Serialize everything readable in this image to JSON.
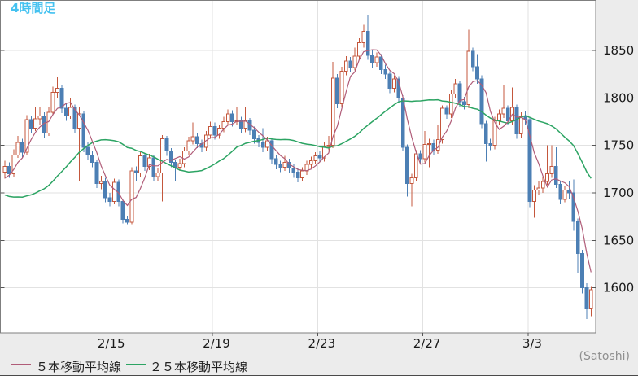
{
  "title": {
    "text": "4時間足"
  },
  "unit_label": "(Satoshi)",
  "legend": [
    {
      "label": "５本移動平均線",
      "period": 5,
      "color": "#b05c78"
    },
    {
      "label": "２５本移動平均線",
      "period": 25,
      "color": "#2ca463"
    }
  ],
  "y_axis": {
    "ticks": [
      "1850",
      "1800",
      "1750",
      "1700",
      "1650",
      "1600"
    ]
  },
  "x_axis": {
    "ticks": [
      "2/15",
      "2/19",
      "2/23",
      "2/27",
      "3/3"
    ]
  },
  "colors": {
    "page_bg": "#ececec",
    "plot_bg": "#ffffff",
    "plot_border": "#7f7f7f",
    "grid": "#e2e2e2",
    "tick": "#555555",
    "axis_text": "#1a1a1a",
    "muted_text": "#8f8f8f",
    "bull": "#c4573c",
    "bull_fill": "#ffffff",
    "bear": "#4c7fb4",
    "ma5": "#b05c78",
    "ma25": "#2ca463",
    "title": "#45c2f0",
    "frame_line": "#4a4a4a"
  },
  "chart_data": {
    "type": "candlestick",
    "timeframe_label": "4時間足",
    "unit": "Satoshi",
    "ylim": [
      1560,
      1895
    ],
    "y_tick_values": [
      1850,
      1800,
      1750,
      1700,
      1650,
      1600
    ],
    "x_tick_labels": [
      "2/15",
      "2/19",
      "2/23",
      "2/27",
      "3/3"
    ],
    "grid": true,
    "legend_position": "bottom-left",
    "overlays": [
      {
        "name": "５本移動平均線",
        "type": "sma",
        "period": 5
      },
      {
        "name": "２５本移動平均線",
        "type": "sma",
        "period": 25
      }
    ],
    "pre_history_closes_ma5": [
      1705,
      1710,
      1715,
      1720
    ],
    "pre_history_closes_ma25": [
      1760,
      1755,
      1750,
      1748,
      1745,
      1740,
      1730,
      1720,
      1710,
      1700,
      1690,
      1680,
      1670,
      1660,
      1655,
      1650,
      1648,
      1650,
      1655,
      1660,
      1670,
      1680,
      1690,
      1700
    ],
    "candles_ohlc": [
      [
        1722,
        1734,
        1715,
        1728
      ],
      [
        1728,
        1732,
        1716,
        1720
      ],
      [
        1720,
        1746,
        1717,
        1740
      ],
      [
        1740,
        1760,
        1737,
        1753
      ],
      [
        1753,
        1757,
        1737,
        1743
      ],
      [
        1743,
        1782,
        1740,
        1777
      ],
      [
        1777,
        1781,
        1763,
        1768
      ],
      [
        1768,
        1791,
        1765,
        1778
      ],
      [
        1778,
        1791,
        1772,
        1781
      ],
      [
        1781,
        1785,
        1758,
        1763
      ],
      [
        1763,
        1790,
        1760,
        1785
      ],
      [
        1785,
        1812,
        1782,
        1806
      ],
      [
        1806,
        1822,
        1800,
        1810
      ],
      [
        1810,
        1814,
        1784,
        1789
      ],
      [
        1789,
        1794,
        1776,
        1781
      ],
      [
        1781,
        1800,
        1778,
        1790
      ],
      [
        1790,
        1793,
        1763,
        1768
      ],
      [
        1768,
        1790,
        1713,
        1783
      ],
      [
        1783,
        1786,
        1743,
        1748
      ],
      [
        1748,
        1753,
        1735,
        1740
      ],
      [
        1740,
        1744,
        1727,
        1732
      ],
      [
        1732,
        1735,
        1705,
        1710
      ],
      [
        1710,
        1718,
        1704,
        1712
      ],
      [
        1712,
        1716,
        1690,
        1695
      ],
      [
        1695,
        1700,
        1686,
        1691
      ],
      [
        1691,
        1715,
        1688,
        1711
      ],
      [
        1711,
        1714,
        1686,
        1691
      ],
      [
        1691,
        1694,
        1668,
        1672
      ],
      [
        1672,
        1676,
        1667,
        1669
      ],
      [
        1669,
        1727,
        1667,
        1723
      ],
      [
        1723,
        1728,
        1713,
        1721
      ],
      [
        1721,
        1743,
        1717,
        1739
      ],
      [
        1739,
        1742,
        1723,
        1728
      ],
      [
        1728,
        1741,
        1724,
        1737
      ],
      [
        1737,
        1740,
        1712,
        1717
      ],
      [
        1717,
        1726,
        1713,
        1721
      ],
      [
        1721,
        1761,
        1691,
        1757
      ],
      [
        1757,
        1760,
        1739,
        1744
      ],
      [
        1744,
        1747,
        1727,
        1732
      ],
      [
        1732,
        1735,
        1713,
        1727
      ],
      [
        1727,
        1736,
        1723,
        1731
      ],
      [
        1731,
        1748,
        1727,
        1744
      ],
      [
        1744,
        1759,
        1740,
        1755
      ],
      [
        1755,
        1774,
        1751,
        1759
      ],
      [
        1759,
        1763,
        1747,
        1752
      ],
      [
        1752,
        1756,
        1743,
        1748
      ],
      [
        1748,
        1765,
        1744,
        1761
      ],
      [
        1761,
        1775,
        1757,
        1770
      ],
      [
        1770,
        1774,
        1756,
        1761
      ],
      [
        1761,
        1772,
        1757,
        1768
      ],
      [
        1768,
        1780,
        1764,
        1775
      ],
      [
        1775,
        1788,
        1771,
        1783
      ],
      [
        1783,
        1787,
        1770,
        1775
      ],
      [
        1775,
        1791,
        1771,
        1776
      ],
      [
        1776,
        1780,
        1763,
        1768
      ],
      [
        1768,
        1791,
        1764,
        1776
      ],
      [
        1776,
        1779,
        1761,
        1766
      ],
      [
        1766,
        1770,
        1752,
        1757
      ],
      [
        1757,
        1761,
        1748,
        1753
      ],
      [
        1753,
        1768,
        1743,
        1748
      ],
      [
        1748,
        1759,
        1744,
        1755
      ],
      [
        1755,
        1758,
        1731,
        1736
      ],
      [
        1736,
        1740,
        1725,
        1730
      ],
      [
        1730,
        1734,
        1722,
        1727
      ],
      [
        1727,
        1739,
        1723,
        1732
      ],
      [
        1732,
        1736,
        1721,
        1726
      ],
      [
        1726,
        1730,
        1716,
        1722
      ],
      [
        1722,
        1726,
        1711,
        1716
      ],
      [
        1716,
        1727,
        1712,
        1723
      ],
      [
        1723,
        1734,
        1719,
        1730
      ],
      [
        1730,
        1738,
        1726,
        1734
      ],
      [
        1734,
        1743,
        1730,
        1739
      ],
      [
        1739,
        1744,
        1732,
        1737
      ],
      [
        1737,
        1753,
        1733,
        1749
      ],
      [
        1749,
        1760,
        1745,
        1750
      ],
      [
        1750,
        1838,
        1747,
        1821
      ],
      [
        1821,
        1825,
        1789,
        1794
      ],
      [
        1794,
        1833,
        1791,
        1828
      ],
      [
        1828,
        1844,
        1824,
        1839
      ],
      [
        1839,
        1843,
        1827,
        1832
      ],
      [
        1832,
        1853,
        1829,
        1844
      ],
      [
        1844,
        1863,
        1840,
        1858
      ],
      [
        1858,
        1877,
        1853,
        1870
      ],
      [
        1870,
        1887,
        1840,
        1845
      ],
      [
        1845,
        1850,
        1832,
        1837
      ],
      [
        1837,
        1848,
        1833,
        1843
      ],
      [
        1843,
        1846,
        1825,
        1830
      ],
      [
        1830,
        1835,
        1820,
        1825
      ],
      [
        1825,
        1828,
        1805,
        1810
      ],
      [
        1810,
        1824,
        1806,
        1820
      ],
      [
        1820,
        1823,
        1795,
        1800
      ],
      [
        1800,
        1803,
        1744,
        1748
      ],
      [
        1748,
        1751,
        1696,
        1710
      ],
      [
        1710,
        1720,
        1686,
        1716
      ],
      [
        1716,
        1745,
        1712,
        1741
      ],
      [
        1741,
        1745,
        1731,
        1736
      ],
      [
        1736,
        1765,
        1732,
        1751
      ],
      [
        1751,
        1757,
        1727,
        1752
      ],
      [
        1752,
        1756,
        1740,
        1745
      ],
      [
        1745,
        1771,
        1741,
        1756
      ],
      [
        1756,
        1792,
        1752,
        1789
      ],
      [
        1789,
        1792,
        1778,
        1783
      ],
      [
        1783,
        1809,
        1779,
        1804
      ],
      [
        1804,
        1820,
        1800,
        1815
      ],
      [
        1815,
        1818,
        1791,
        1796
      ],
      [
        1796,
        1801,
        1788,
        1793
      ],
      [
        1793,
        1872,
        1789,
        1849
      ],
      [
        1849,
        1853,
        1828,
        1833
      ],
      [
        1833,
        1846,
        1815,
        1820
      ],
      [
        1820,
        1824,
        1768,
        1773
      ],
      [
        1773,
        1776,
        1733,
        1752
      ],
      [
        1752,
        1757,
        1745,
        1750
      ],
      [
        1750,
        1780,
        1746,
        1776
      ],
      [
        1776,
        1788,
        1771,
        1783
      ],
      [
        1783,
        1813,
        1779,
        1789
      ],
      [
        1789,
        1792,
        1771,
        1776
      ],
      [
        1776,
        1811,
        1772,
        1790
      ],
      [
        1790,
        1793,
        1757,
        1762
      ],
      [
        1762,
        1785,
        1758,
        1780
      ],
      [
        1780,
        1786,
        1771,
        1777
      ],
      [
        1777,
        1780,
        1685,
        1691
      ],
      [
        1691,
        1708,
        1674,
        1703
      ],
      [
        1703,
        1712,
        1698,
        1705
      ],
      [
        1705,
        1717,
        1700,
        1712
      ],
      [
        1712,
        1750,
        1708,
        1720
      ],
      [
        1720,
        1750,
        1716,
        1728
      ],
      [
        1728,
        1748,
        1705,
        1709
      ],
      [
        1709,
        1712,
        1688,
        1693
      ],
      [
        1693,
        1707,
        1690,
        1703
      ],
      [
        1703,
        1712,
        1694,
        1700
      ],
      [
        1700,
        1714,
        1660,
        1670
      ],
      [
        1670,
        1673,
        1616,
        1636
      ],
      [
        1636,
        1640,
        1594,
        1600
      ],
      [
        1600,
        1605,
        1567,
        1578
      ],
      [
        1578,
        1601,
        1570,
        1598
      ]
    ]
  }
}
